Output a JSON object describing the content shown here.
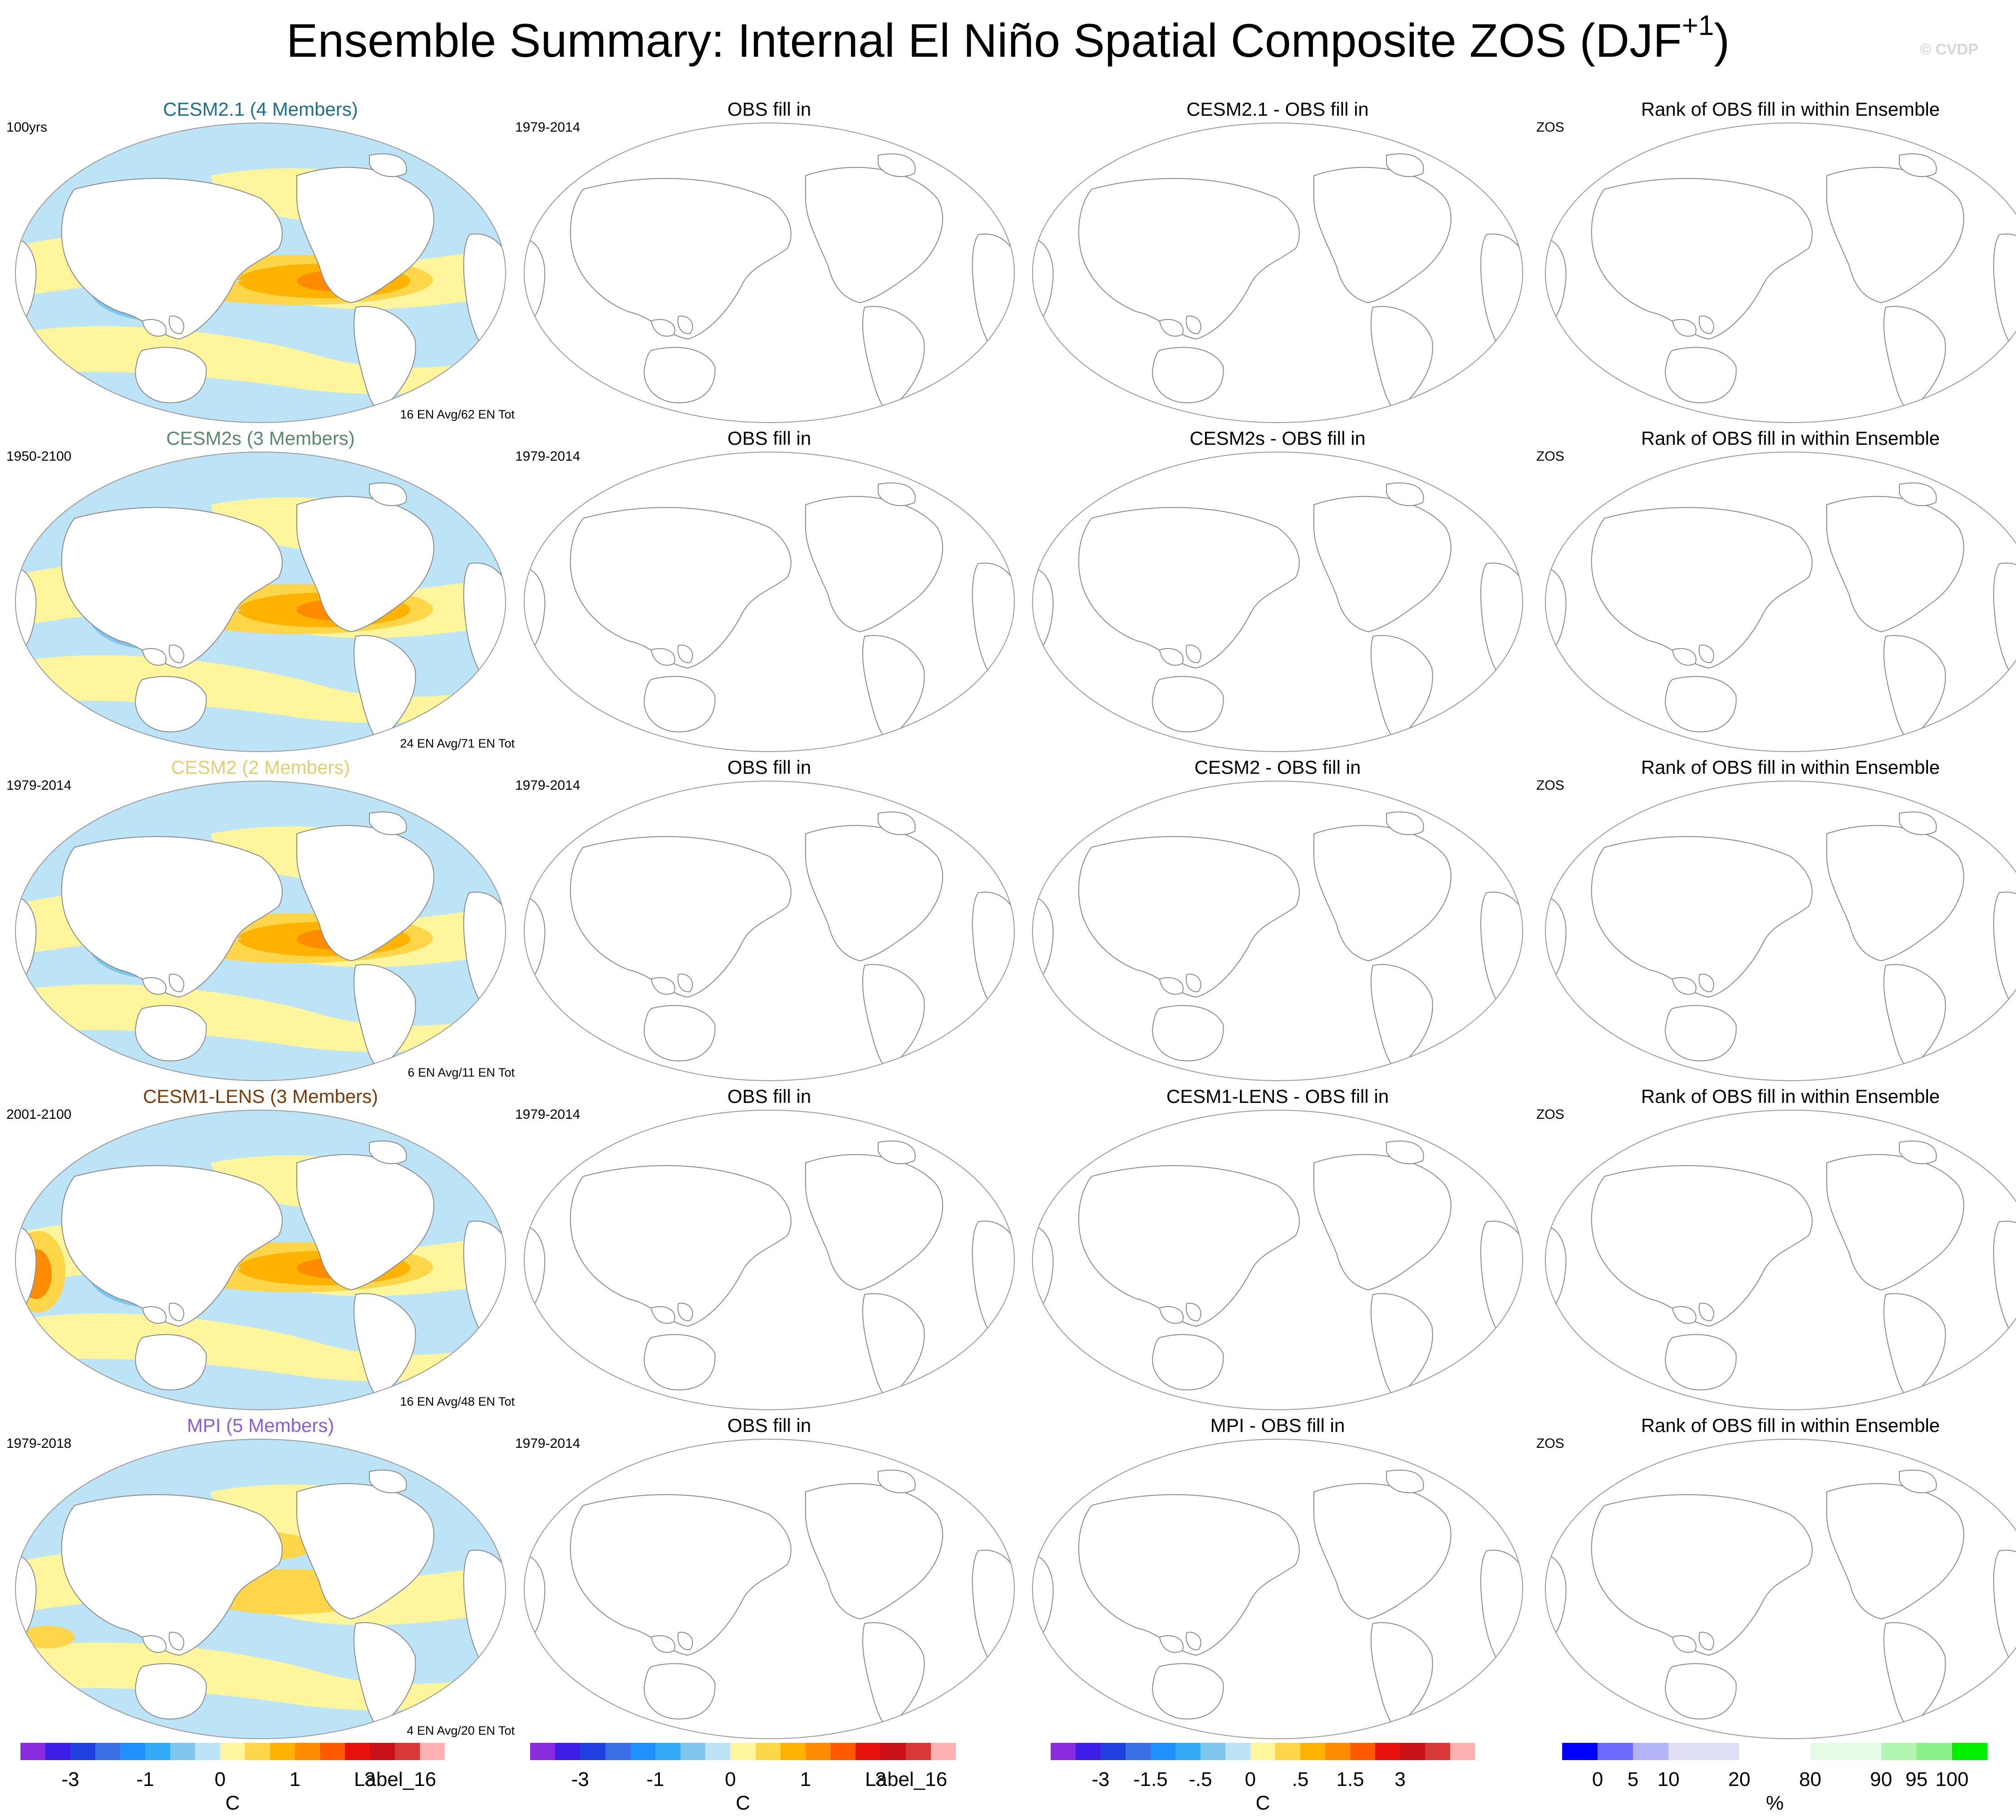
{
  "title": {
    "text": "Ensemble Summary: Internal El Niño Spatial Composite ZOS (DJF",
    "superscript": "+1",
    "close": ")"
  },
  "watermark": "© CVDP",
  "rows": [
    {
      "model": "CESM2.1 (4 Members)",
      "model_color": "#1f6f8b",
      "years": "100yrs",
      "events": "16 EN Avg/62 EN Tot",
      "obs_title": "OBS fill in",
      "obs_years": "1979-2014",
      "diff_title": "CESM2.1 - OBS fill in",
      "rank_title": "Rank of OBS fill in within Ensemble",
      "rank_label": "ZOS",
      "pattern": "strong"
    },
    {
      "model": "CESM2s (3 Members)",
      "model_color": "#5a8a6a",
      "years": "1950-2100",
      "events": "24 EN Avg/71 EN Tot",
      "obs_title": "OBS fill in",
      "obs_years": "1979-2014",
      "diff_title": "CESM2s - OBS fill in",
      "rank_title": "Rank of OBS fill in within Ensemble",
      "rank_label": "ZOS",
      "pattern": "strong"
    },
    {
      "model": "CESM2 (2 Members)",
      "model_color": "#e2cf73",
      "years": "1979-2014",
      "events": "6 EN Avg/11 EN Tot",
      "obs_title": "OBS fill in",
      "obs_years": "1979-2014",
      "diff_title": "CESM2 - OBS fill in",
      "rank_title": "Rank of OBS fill in within Ensemble",
      "rank_label": "ZOS",
      "pattern": "strong"
    },
    {
      "model": "CESM1-LENS (3 Members)",
      "model_color": "#7a3b0a",
      "years": "2001-2100",
      "events": "16 EN Avg/48 EN Tot",
      "obs_title": "OBS fill in",
      "obs_years": "1979-2014",
      "diff_title": "CESM1-LENS - OBS fill in",
      "rank_title": "Rank of OBS fill in within Ensemble",
      "rank_label": "ZOS",
      "pattern": "lens"
    },
    {
      "model": "MPI (5 Members)",
      "model_color": "#8e5ed1",
      "years": "1979-2018",
      "events": "4 EN Avg/20 EN Tot",
      "obs_title": "OBS fill in",
      "obs_years": "1979-2014",
      "diff_title": "MPI - OBS fill in",
      "rank_title": "Rank of OBS fill in within Ensemble",
      "rank_label": "ZOS",
      "pattern": "weak"
    }
  ],
  "colorbars": [
    {
      "colors": [
        "#8a2be2",
        "#3d1ee6",
        "#1f3fe0",
        "#3a6fe6",
        "#1e90ff",
        "#33aaf5",
        "#7fc6ee",
        "#bde3f7",
        "#fff59d",
        "#ffd54a",
        "#ffb300",
        "#ff8c00",
        "#ff5a00",
        "#e8120c",
        "#c8101a",
        "#d93838",
        "#ffb0b0"
      ],
      "ticks": [
        {
          "label": "-3",
          "pos": 2
        },
        {
          "label": "-1",
          "pos": 5
        },
        {
          "label": "0",
          "pos": 8
        },
        {
          "label": "1",
          "pos": 11
        },
        {
          "label": "3",
          "pos": 14
        }
      ],
      "extra": "Label_16",
      "unit": "C"
    },
    {
      "colors": [
        "#8a2be2",
        "#3d1ee6",
        "#1f3fe0",
        "#3a6fe6",
        "#1e90ff",
        "#33aaf5",
        "#7fc6ee",
        "#bde3f7",
        "#fff59d",
        "#ffd54a",
        "#ffb300",
        "#ff8c00",
        "#ff5a00",
        "#e8120c",
        "#c8101a",
        "#d93838",
        "#ffb0b0"
      ],
      "ticks": [
        {
          "label": "-3",
          "pos": 2
        },
        {
          "label": "-1",
          "pos": 5
        },
        {
          "label": "0",
          "pos": 8
        },
        {
          "label": "1",
          "pos": 11
        },
        {
          "label": "3",
          "pos": 14
        }
      ],
      "extra": "Label_16",
      "unit": "C"
    },
    {
      "colors": [
        "#8a2be2",
        "#3d1ee6",
        "#1f3fe0",
        "#3a6fe6",
        "#1e90ff",
        "#33aaf5",
        "#7fc6ee",
        "#bde3f7",
        "#fff59d",
        "#ffd54a",
        "#ffb300",
        "#ff8c00",
        "#ff5a00",
        "#e8120c",
        "#c8101a",
        "#d93838",
        "#ffb0b0"
      ],
      "ticks": [
        {
          "label": "-3",
          "pos": 2
        },
        {
          "label": "-1.5",
          "pos": 4
        },
        {
          "label": "-.5",
          "pos": 6
        },
        {
          "label": "0",
          "pos": 8
        },
        {
          "label": ".5",
          "pos": 10
        },
        {
          "label": "1.5",
          "pos": 12
        },
        {
          "label": "3",
          "pos": 14
        }
      ],
      "extra": "",
      "unit": "C"
    },
    {
      "colors": [
        "#0000ff",
        "#6b6bff",
        "#b3b3f7",
        "#dedef7",
        "#dedef7",
        "#ffffff",
        "#ffffff",
        "#e5fbe5",
        "#e5fbe5",
        "#b0f5b0",
        "#8af08a",
        "#00f000"
      ],
      "ticks": [
        {
          "label": "0",
          "pos": 1
        },
        {
          "label": "5",
          "pos": 2
        },
        {
          "label": "10",
          "pos": 3
        },
        {
          "label": "20",
          "pos": 5
        },
        {
          "label": "80",
          "pos": 7
        },
        {
          "label": "90",
          "pos": 9
        },
        {
          "label": "95",
          "pos": 10
        },
        {
          "label": "100",
          "pos": 11
        }
      ],
      "extra": "",
      "unit": "%"
    }
  ]
}
